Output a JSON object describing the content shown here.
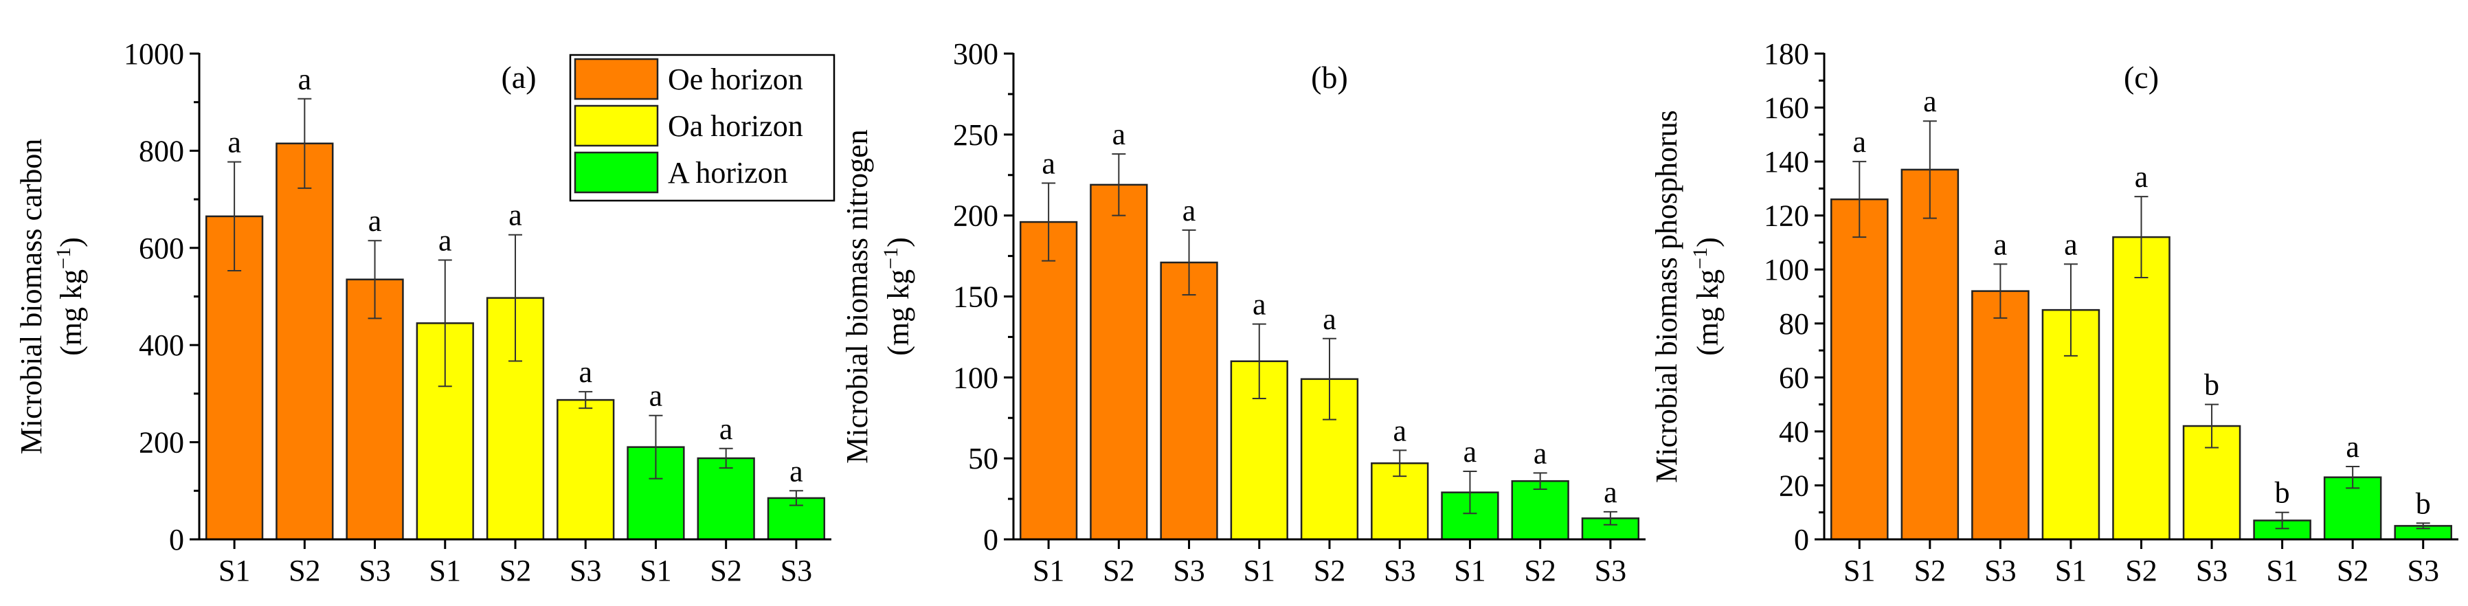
{
  "colors": {
    "Oe horizon": "#ff7f00",
    "Oa horizon": "#ffff00",
    "A horizon": "#00ff00"
  },
  "legend": [
    "Oe horizon",
    "Oa horizon",
    "A horizon"
  ],
  "chart_data": [
    {
      "type": "bar",
      "panel": "(a)",
      "ylabel": "Microbial biomass carbon",
      "yunit": [
        "(mg kg",
        "−1",
        ")"
      ],
      "ylim": [
        0,
        1000
      ],
      "yticks": [
        0,
        200,
        400,
        600,
        800,
        1000
      ],
      "categories": [
        "S1",
        "S2",
        "S3",
        "S1",
        "S2",
        "S3",
        "S1",
        "S2",
        "S3"
      ],
      "horizons": [
        "Oe horizon",
        "Oe horizon",
        "Oe horizon",
        "Oa horizon",
        "Oa horizon",
        "Oa horizon",
        "A horizon",
        "A horizon",
        "A horizon"
      ],
      "values": [
        665,
        815,
        535,
        445,
        497,
        287,
        190,
        167,
        85
      ],
      "errors": [
        112,
        92,
        80,
        130,
        130,
        17,
        65,
        20,
        15
      ],
      "letters": [
        "a",
        "a",
        "a",
        "a",
        "a",
        "a",
        "a",
        "a",
        "a"
      ]
    },
    {
      "type": "bar",
      "panel": "(b)",
      "ylabel": "Microbial biomass nitrogen",
      "yunit": [
        "(mg kg",
        "−1",
        ")"
      ],
      "ylim": [
        0,
        300
      ],
      "yticks": [
        0,
        50,
        100,
        150,
        200,
        250,
        300
      ],
      "categories": [
        "S1",
        "S2",
        "S3",
        "S1",
        "S2",
        "S3",
        "S1",
        "S2",
        "S3"
      ],
      "horizons": [
        "Oe horizon",
        "Oe horizon",
        "Oe horizon",
        "Oa horizon",
        "Oa horizon",
        "Oa horizon",
        "A horizon",
        "A horizon",
        "A horizon"
      ],
      "values": [
        196,
        219,
        171,
        110,
        99,
        47,
        29,
        36,
        13
      ],
      "errors": [
        24,
        19,
        20,
        23,
        25,
        8,
        13,
        5,
        4
      ],
      "letters": [
        "a",
        "a",
        "a",
        "a",
        "a",
        "a",
        "a",
        "a",
        "a"
      ]
    },
    {
      "type": "bar",
      "panel": "(c)",
      "ylabel": "Microbial biomass phosphorus",
      "yunit": [
        "(mg kg",
        "−1",
        ")"
      ],
      "ylim": [
        0,
        180
      ],
      "yticks": [
        0,
        20,
        40,
        60,
        80,
        100,
        120,
        140,
        160,
        180
      ],
      "categories": [
        "S1",
        "S2",
        "S3",
        "S1",
        "S2",
        "S3",
        "S1",
        "S2",
        "S3"
      ],
      "horizons": [
        "Oe horizon",
        "Oe horizon",
        "Oe horizon",
        "Oa horizon",
        "Oa horizon",
        "Oa horizon",
        "A horizon",
        "A horizon",
        "A horizon"
      ],
      "values": [
        126,
        137,
        92,
        85,
        112,
        42,
        7,
        23,
        5
      ],
      "errors": [
        14,
        18,
        10,
        17,
        15,
        8,
        3,
        4,
        1
      ],
      "letters": [
        "a",
        "a",
        "a",
        "a",
        "a",
        "b",
        "b",
        "a",
        "b"
      ]
    }
  ]
}
